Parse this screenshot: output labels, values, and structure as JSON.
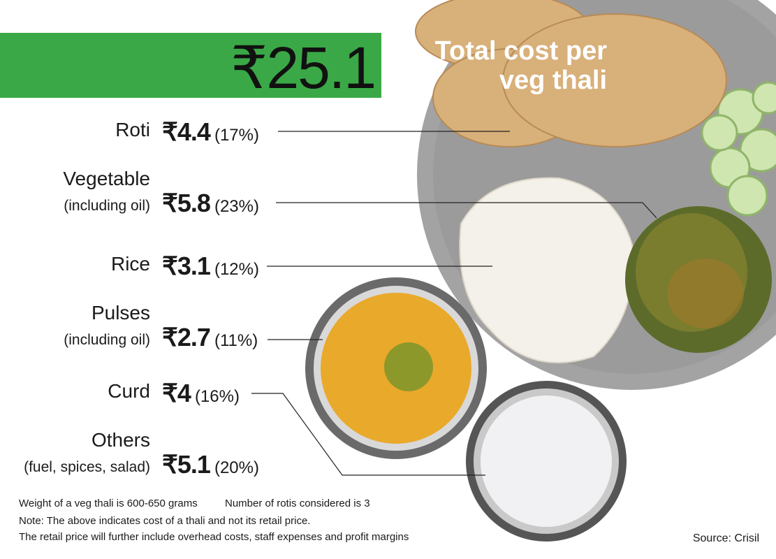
{
  "header": {
    "title_line1": "Total cost per",
    "title_line2": "veg thali",
    "total": "₹25.1"
  },
  "items": [
    {
      "label": "Roti",
      "cost": "₹4.4",
      "share": "(17%)"
    },
    {
      "label": "Vegetable",
      "note": "(including oil)",
      "cost": "₹5.8",
      "share": "(23%)"
    },
    {
      "label": "Rice",
      "cost": "₹3.1",
      "share": "(12%)"
    },
    {
      "label": "Pulses",
      "note": "(including oil)",
      "cost": "₹2.7",
      "share": "(11%)"
    },
    {
      "label": "Curd",
      "cost": "₹4",
      "share": "(16%)"
    },
    {
      "label": "Others",
      "note": "(fuel, spices, salad)",
      "cost": "₹5.1",
      "share": "(20%)"
    }
  ],
  "notes": [
    "Weight of a veg thali is 600-650 grams",
    "Number of rotis considered is 3",
    "Note: The above indicates cost of a thali and not its retail price.",
    "The retail price will further include overhead costs, staff expenses  and profit margins"
  ],
  "source": "Source: Crisil"
}
